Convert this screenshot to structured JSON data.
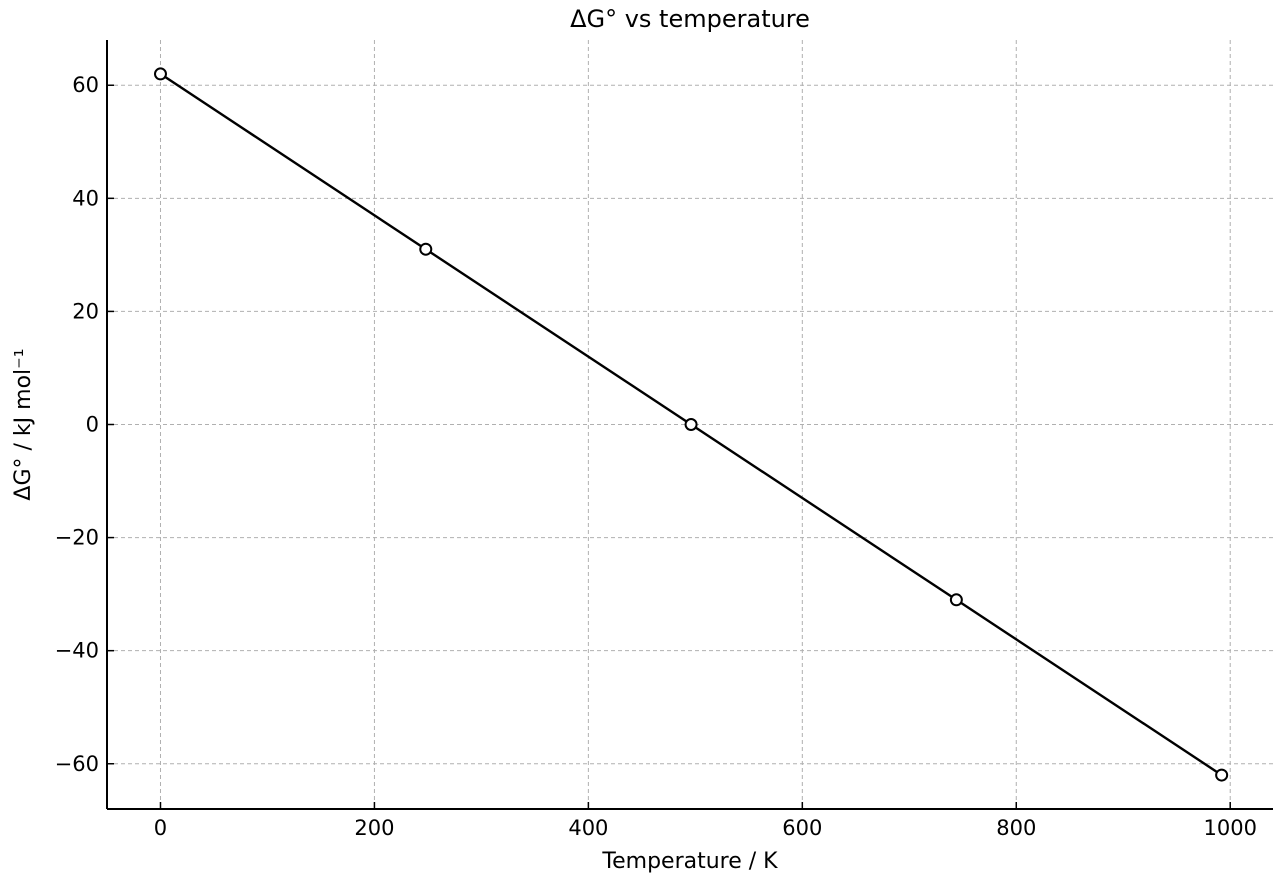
{
  "chart_data": {
    "type": "line",
    "title": "ΔG° vs temperature",
    "xlabel": "Temperature / K",
    "ylabel": "ΔG° / kJ mol⁻¹",
    "xlim": [
      -50,
      1040
    ],
    "ylim": [
      -68,
      68
    ],
    "x_ticks": [
      0,
      200,
      400,
      600,
      800,
      1000
    ],
    "x_tick_labels": [
      "0",
      "200",
      "400",
      "600",
      "800",
      "1000"
    ],
    "y_ticks": [
      60,
      40,
      20,
      0,
      -20,
      -40,
      -60
    ],
    "y_tick_labels": [
      "60",
      "40",
      "20",
      "0",
      "−20",
      "−40",
      "−60"
    ],
    "grid": true,
    "series": [
      {
        "x": [
          0,
          248,
          496,
          744,
          992
        ],
        "y": [
          62,
          31,
          0,
          -31,
          -62
        ],
        "color": "#000000",
        "marker": "open-circle"
      }
    ]
  }
}
